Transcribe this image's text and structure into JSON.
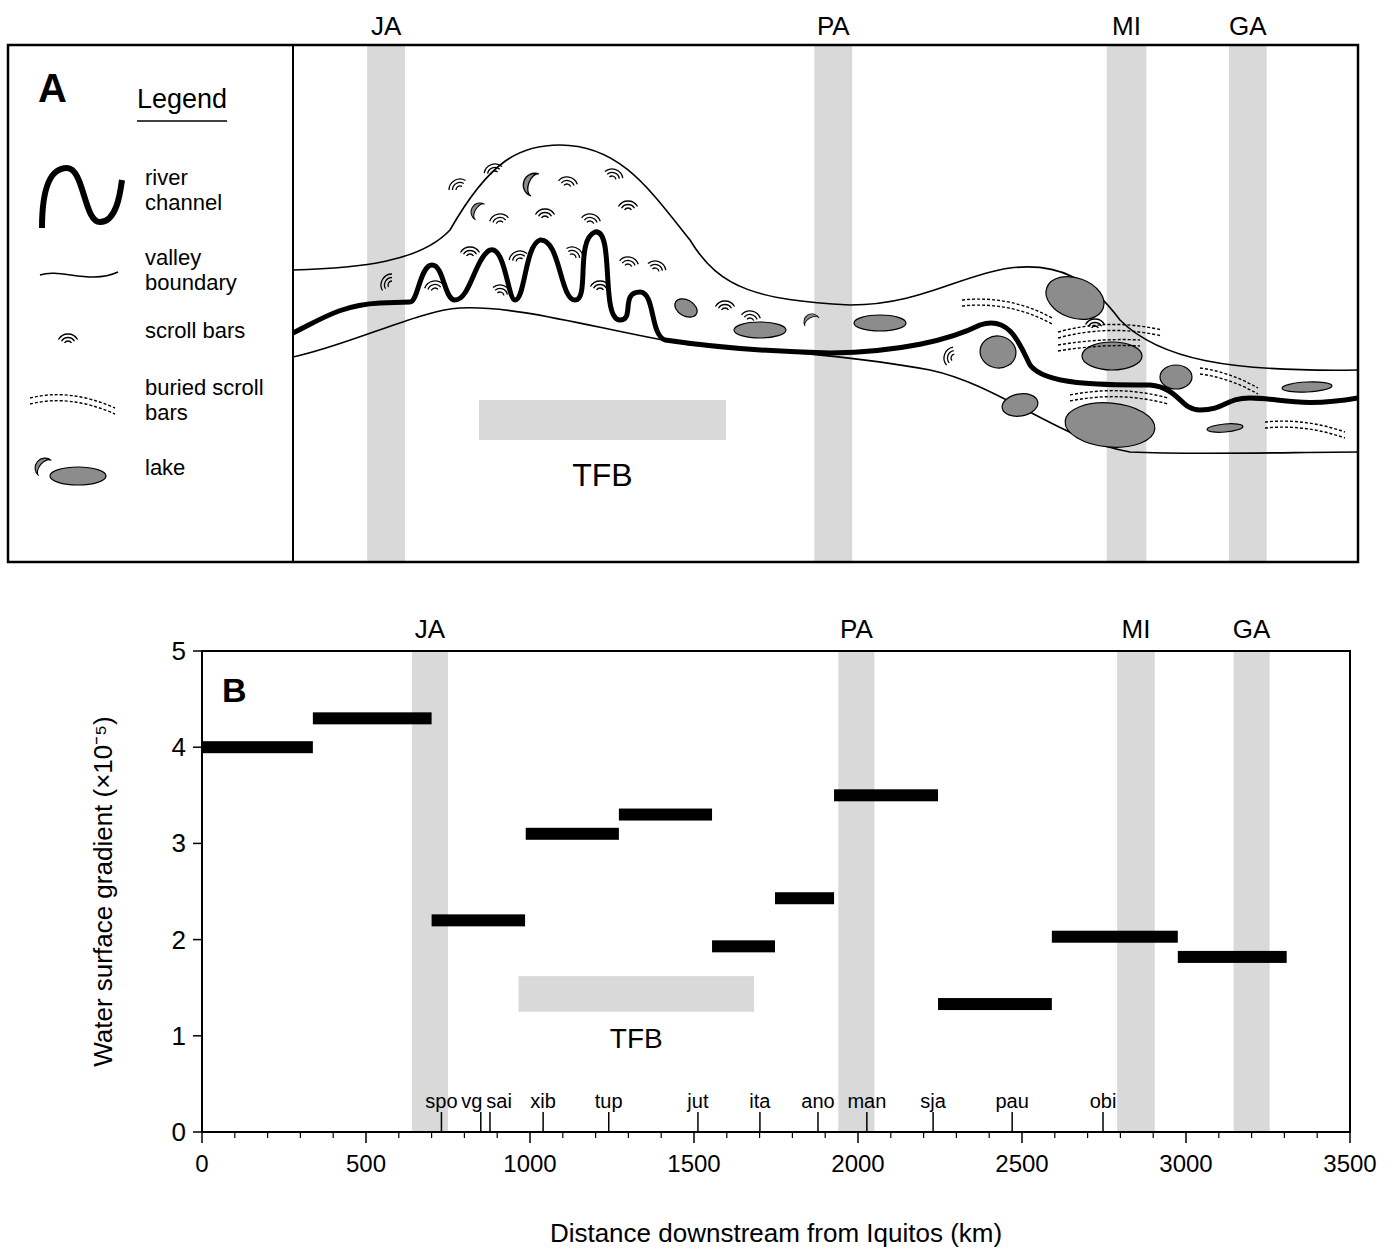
{
  "panel_a": {
    "letter": "A",
    "legend_title": "Legend",
    "legend_items": [
      [
        "river",
        "channel"
      ],
      [
        "valley",
        "boundary"
      ],
      [
        "scroll bars"
      ],
      [
        "buried scroll",
        "bars"
      ],
      [
        "lake"
      ]
    ]
  },
  "chart_data": {
    "type": "segment",
    "panel_label": "B",
    "y_label": "Water surface gradient (×10⁻⁵)",
    "x_label": "Distance downstream from Iquitos (km)",
    "x_start": [
      0,
      338,
      700,
      987,
      1271,
      1555,
      1747,
      1927,
      2244,
      2591,
      2975
    ],
    "x_end": [
      338,
      700,
      985,
      1271,
      1555,
      1747,
      1927,
      2244,
      2591,
      2975,
      3307
    ],
    "values": [
      4.0,
      4.3,
      2.2,
      3.1,
      3.3,
      1.93,
      2.43,
      3.5,
      1.33,
      2.03,
      1.82
    ],
    "color": "#000000",
    "xlim": [
      0,
      3500
    ],
    "xticks": [
      0,
      500,
      1000,
      1500,
      2000,
      2500,
      3000,
      3500
    ],
    "ylim": [
      0,
      5
    ],
    "yticks": [
      0,
      1,
      2,
      3,
      4,
      5
    ],
    "bands": [
      {
        "label": "JA",
        "start": 640,
        "end": 750
      },
      {
        "label": "PA",
        "start": 1940,
        "end": 2050
      },
      {
        "label": "MI",
        "start": 2790,
        "end": 2905
      },
      {
        "label": "GA",
        "start": 3145,
        "end": 3255
      }
    ],
    "tfb": {
      "label": "TFB",
      "start": 965,
      "end": 1683,
      "y_low": 1.25,
      "y_high": 1.62
    },
    "stations": {
      "labels": [
        "spo",
        "vg",
        "sai",
        "xib",
        "tup",
        "jut",
        "ita",
        "ano",
        "man",
        "sja",
        "pau",
        "obi"
      ],
      "x": [
        730,
        850,
        878,
        1040,
        1240,
        1512,
        1701,
        1878,
        2027,
        2229,
        2470,
        2747
      ]
    },
    "grid": false
  }
}
